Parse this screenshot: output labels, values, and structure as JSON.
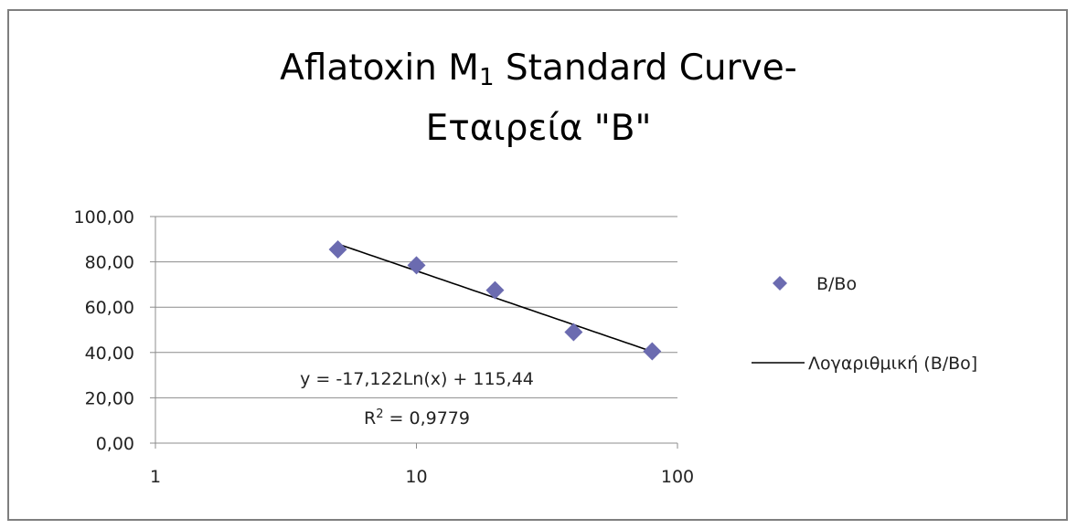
{
  "chart_data": {
    "type": "scatter",
    "title_parts": {
      "before_sub": "Aflatoxin M",
      "sub": "1",
      "after_sub": " Standard Curve-",
      "line2": "Εταιρεία \"B\""
    },
    "x_scale": "log",
    "xlim": [
      1,
      100
    ],
    "ylim": [
      0,
      100
    ],
    "x_ticks": [
      1,
      10,
      100
    ],
    "x_tick_labels": [
      "1",
      "10",
      "100"
    ],
    "y_ticks": [
      0,
      20,
      40,
      60,
      80,
      100
    ],
    "y_tick_labels": [
      "0,00",
      "20,00",
      "40,00",
      "60,00",
      "80,00",
      "100,00"
    ],
    "grid": "horizontal",
    "series": [
      {
        "name": "B/Bo",
        "marker": "diamond",
        "color": "#6b6bb0",
        "x": [
          5,
          10,
          20,
          40,
          80
        ],
        "y": [
          85.5,
          78.5,
          67.5,
          49.0,
          40.5
        ]
      }
    ],
    "trendline": {
      "name": "Λογαριθμική (B/Bo]",
      "type": "log",
      "a": -17.122,
      "b": 115.44,
      "x_range": [
        5,
        80
      ],
      "color": "#000000",
      "equation_label": "y = -17,122Ln(x) + 115,44",
      "r2_prefix": "R",
      "r2_sup": "2",
      "r2_value": " = 0,9779"
    },
    "legend_position": "right"
  }
}
